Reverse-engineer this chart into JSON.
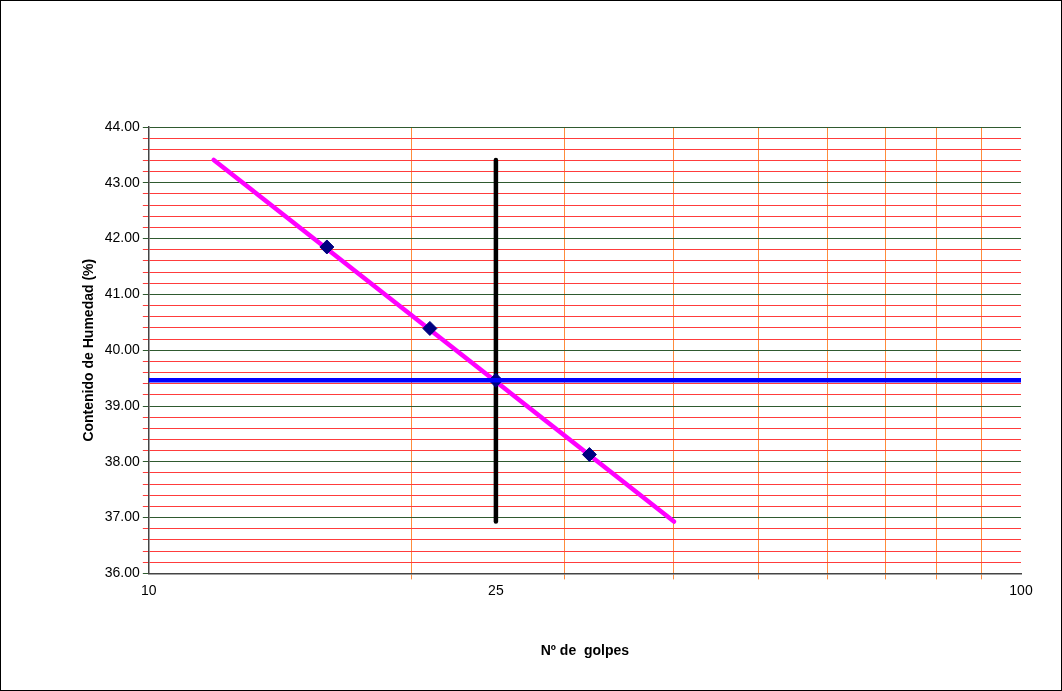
{
  "chart_data": {
    "type": "scatter",
    "xlabel": "Nº de  golpes",
    "ylabel": "Contenido de Humedad (%)",
    "log": "x",
    "grid": true,
    "legend": false,
    "xlim": [
      10,
      100
    ],
    "xticks": [
      10,
      {
        "value": 20,
        "label": null
      },
      25,
      {
        "value": 30,
        "label": null
      },
      {
        "value": 40,
        "label": null
      },
      {
        "value": 50,
        "label": null
      },
      {
        "value": 60,
        "label": null
      },
      {
        "value": 70,
        "label": null
      },
      {
        "value": 80,
        "label": null
      },
      {
        "value": 90,
        "label": null
      },
      100
    ],
    "ylim": [
      36,
      44
    ],
    "yticks": [
      {
        "value": 36,
        "label": "36.00"
      },
      {
        "value": 36.2,
        "label": null
      },
      {
        "value": 36.4,
        "label": null
      },
      {
        "value": 36.6,
        "label": null
      },
      {
        "value": 36.8,
        "label": null
      },
      {
        "value": 37,
        "label": "37.00"
      },
      {
        "value": 37.2,
        "label": null
      },
      {
        "value": 37.4,
        "label": null
      },
      {
        "value": 37.6,
        "label": null
      },
      {
        "value": 37.8,
        "label": null
      },
      {
        "value": 38,
        "label": "38.00"
      },
      {
        "value": 38.2,
        "label": null
      },
      {
        "value": 38.4,
        "label": null
      },
      {
        "value": 38.6,
        "label": null
      },
      {
        "value": 38.8,
        "label": null
      },
      {
        "value": 39,
        "label": "39.00"
      },
      {
        "value": 39.2,
        "label": null
      },
      {
        "value": 39.4,
        "label": null
      },
      {
        "value": 39.6,
        "label": null
      },
      {
        "value": 39.8,
        "label": null
      },
      {
        "value": 40,
        "label": "40.00"
      },
      {
        "value": 40.2,
        "label": null
      },
      {
        "value": 40.4,
        "label": null
      },
      {
        "value": 40.6,
        "label": null
      },
      {
        "value": 40.8,
        "label": null
      },
      {
        "value": 41,
        "label": "41.00"
      },
      {
        "value": 41.2,
        "label": null
      },
      {
        "value": 41.4,
        "label": null
      },
      {
        "value": 41.6,
        "label": null
      },
      {
        "value": 41.8,
        "label": null
      },
      {
        "value": 42,
        "label": "42.00"
      },
      {
        "value": 42.2,
        "label": null
      },
      {
        "value": 42.4,
        "label": null
      },
      {
        "value": 42.6,
        "label": null
      },
      {
        "value": 42.8,
        "label": null
      },
      {
        "value": 43,
        "label": "43.00"
      },
      {
        "value": 43.2,
        "label": null
      },
      {
        "value": 43.4,
        "label": null
      },
      {
        "value": 43.6,
        "label": null
      },
      {
        "value": 43.8,
        "label": null
      },
      {
        "value": 44,
        "label": "44.00"
      }
    ],
    "ref_lines": [
      {
        "axis": "y",
        "value": 39.46,
        "color": "#0000ff"
      }
    ],
    "series": [
      {
        "type": "line",
        "color": "#ff00ff",
        "marker": "none",
        "x": [
          11.87,
          40
        ],
        "values": [
          43.41,
          36.93
        ]
      },
      {
        "type": "line",
        "color": "#000000",
        "marker": "none",
        "x": [
          25,
          25
        ],
        "values": [
          36.93,
          43.41
        ]
      },
      {
        "type": "scatter",
        "color": "#000080",
        "marker": "diamond",
        "x": [
          16,
          21,
          25,
          32
        ],
        "values": [
          41.85,
          40.39,
          39.46,
          38.13
        ]
      }
    ]
  }
}
